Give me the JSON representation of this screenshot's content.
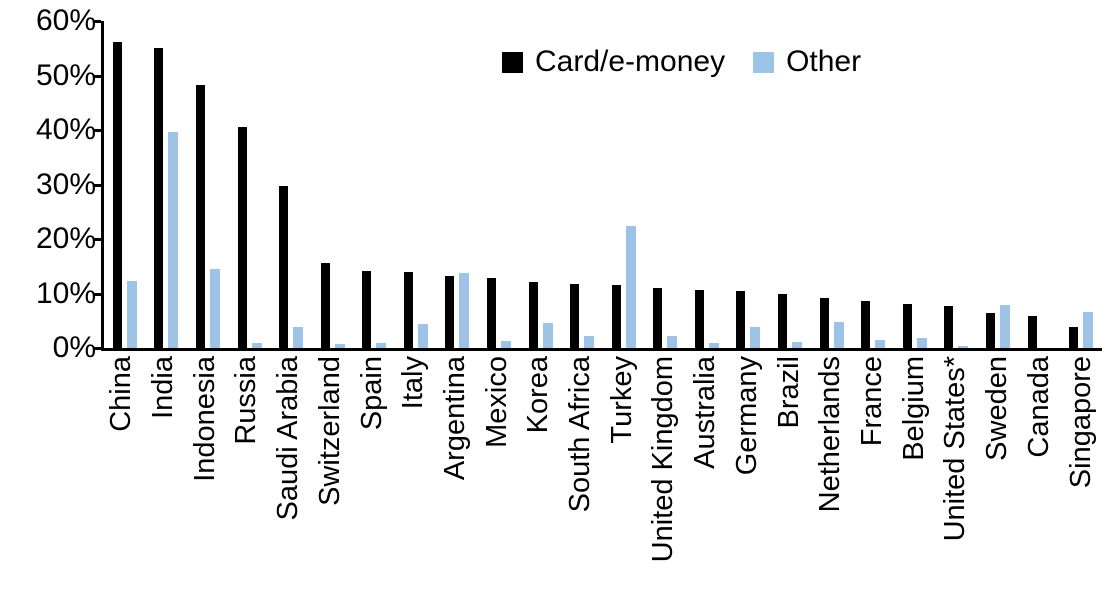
{
  "chart_data": {
    "type": "bar",
    "title": "",
    "xlabel": "",
    "ylabel": "",
    "ylim": [
      0,
      60
    ],
    "ytick_step": 10,
    "ytick_labels": [
      "0%",
      "10%",
      "20%",
      "30%",
      "40%",
      "50%",
      "60%"
    ],
    "grid": false,
    "legend_position": "top-center",
    "categories": [
      "China",
      "India",
      "Indonesia",
      "Russia",
      "Saudi Arabia",
      "Switzerland",
      "Spain",
      "Italy",
      "Argentina",
      "Mexico",
      "Korea",
      "South Africa",
      "Turkey",
      "United Kingdom",
      "Australia",
      "Germany",
      "Brazil",
      "Netherlands",
      "France",
      "Belgium",
      "United States*",
      "Sweden",
      "Canada",
      "Singapore"
    ],
    "series": [
      {
        "name": "Card/e-money",
        "color": "#000000",
        "values": [
          56.2,
          55.0,
          48.3,
          40.5,
          29.8,
          15.6,
          14.2,
          14.0,
          13.3,
          12.9,
          12.2,
          11.7,
          11.5,
          11.0,
          10.7,
          10.5,
          9.9,
          9.2,
          8.6,
          8.1,
          7.8,
          6.5,
          5.8,
          3.8
        ]
      },
      {
        "name": "Other",
        "color": "#9DC3E6",
        "values": [
          12.3,
          39.7,
          14.5,
          1.0,
          3.8,
          0.8,
          1.0,
          4.5,
          13.8,
          1.3,
          4.6,
          2.3,
          22.4,
          2.3,
          1.0,
          3.9,
          1.1,
          4.7,
          1.4,
          1.9,
          0.3,
          7.9,
          0.0,
          6.6
        ]
      }
    ]
  },
  "legend": {
    "card_label": "Card/e-money",
    "other_label": "Other"
  },
  "colors": {
    "card": "#000000",
    "other": "#9DC3E6",
    "axis": "#000000",
    "background": "#FFFFFF"
  }
}
